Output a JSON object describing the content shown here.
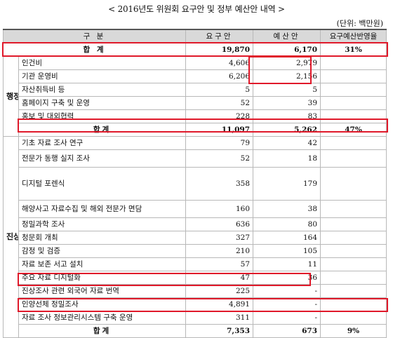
{
  "title": "< 2016년도 위원회 요구안 및 정부 예산안 내역 >",
  "unit": "(단위: 백만원)",
  "headers": {
    "category": "구 분",
    "request": "요구안",
    "gov": "예산안",
    "ratio": "요구예산반영율"
  },
  "grand_total": {
    "label": "합 계",
    "request": "19,870",
    "gov": "6,170",
    "ratio": "31%"
  },
  "groups": [
    {
      "name": "행정지원실",
      "rows": [
        {
          "item": "인건비",
          "request": "4,606",
          "gov": "2,979"
        },
        {
          "item": "기관 운영비",
          "request": "6,206",
          "gov": "2,156"
        },
        {
          "item": "자산취득비 등",
          "request": "5",
          "gov": "5"
        },
        {
          "item": "홈페이지 구축 및 운영",
          "request": "52",
          "gov": "39"
        },
        {
          "item": "홍보 및 대외협력",
          "request": "228",
          "gov": "83"
        }
      ],
      "subtotal": {
        "label": "합계",
        "request": "11,097",
        "gov": "5,262",
        "ratio": "47%"
      }
    },
    {
      "name": "진상규명국",
      "rows": [
        {
          "item": "기초 자료 조사 연구",
          "request": "79",
          "gov": "42"
        },
        {
          "item": "전문가 동행 실지 조사",
          "request": "52",
          "gov": "18"
        },
        {
          "item": "디지털 포렌식",
          "request": "358",
          "gov": "179"
        },
        {
          "item": "해양사고 자료수집 및 해외 전문가 면담",
          "request": "160",
          "gov": "38"
        },
        {
          "item": "정밀과학 조사",
          "request": "636",
          "gov": "80"
        },
        {
          "item": "청문회 개최",
          "request": "327",
          "gov": "164"
        },
        {
          "item": "감정 및 검증",
          "request": "210",
          "gov": "105"
        },
        {
          "item": "자료 보존 서고 설치",
          "request": "57",
          "gov": "11"
        },
        {
          "item": "주요 자료 디지털화",
          "request": "47",
          "gov": "36"
        },
        {
          "item": "진상조사 관련 외국어 자료 번역",
          "request": "225",
          "gov": "-"
        },
        {
          "item": "인양선체 정밀조사",
          "request": "4,891",
          "gov": "-"
        },
        {
          "item": "자료 조사 정보관리시스템 구축 운영",
          "request": "311",
          "gov": "-"
        }
      ],
      "subtotal": {
        "label": "합계",
        "request": "7,353",
        "gov": "673",
        "ratio": "9%"
      }
    }
  ]
}
